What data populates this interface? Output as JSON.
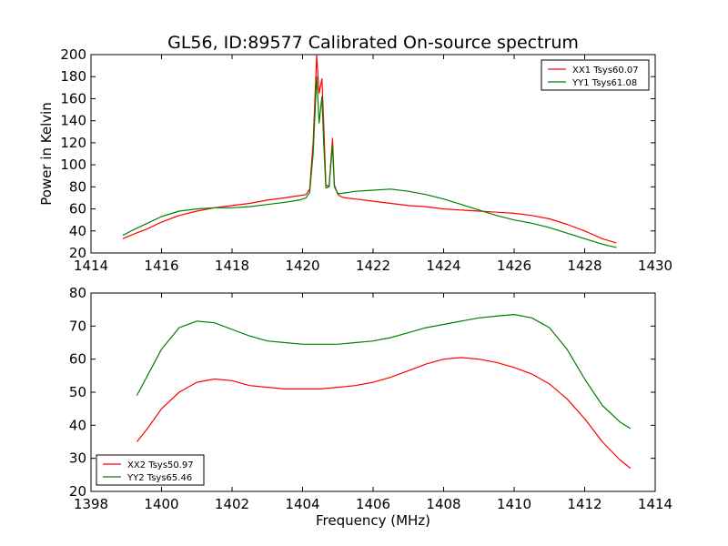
{
  "chart_data": [
    {
      "type": "line",
      "title": "GL56, ID:89577 Calibrated On-source spectrum",
      "xlabel": "",
      "ylabel": "Power in Kelvin",
      "xlim": [
        1414,
        1430
      ],
      "ylim": [
        20,
        200
      ],
      "xticks": [
        "1414",
        "1416",
        "1418",
        "1420",
        "1422",
        "1424",
        "1426",
        "1428",
        "1430"
      ],
      "yticks": [
        "20",
        "40",
        "60",
        "80",
        "100",
        "120",
        "140",
        "160",
        "180",
        "200"
      ],
      "grid": false,
      "legend_position": "top-right",
      "series": [
        {
          "name": "XX1 Tsys60.07",
          "color": "#ff0000",
          "x": [
            1414.9,
            1415.2,
            1415.6,
            1416.0,
            1416.5,
            1417.0,
            1417.5,
            1418.0,
            1418.5,
            1419.0,
            1419.5,
            1419.9,
            1420.1,
            1420.2,
            1420.3,
            1420.4,
            1420.47,
            1420.55,
            1420.6,
            1420.66,
            1420.75,
            1420.85,
            1420.9,
            1421.0,
            1421.1,
            1421.2,
            1421.5,
            1422.0,
            1422.5,
            1423.0,
            1423.5,
            1424.0,
            1424.5,
            1425.0,
            1425.5,
            1426.0,
            1426.5,
            1427.0,
            1427.5,
            1428.0,
            1428.5,
            1428.9
          ],
          "values": [
            33,
            37,
            42,
            48,
            54,
            58,
            61,
            63,
            65,
            68,
            70,
            72,
            73,
            78,
            120,
            199,
            165,
            178,
            138,
            82,
            80,
            124,
            82,
            73,
            71,
            70,
            69,
            67,
            65,
            63,
            62,
            60,
            59,
            58,
            57,
            56,
            54,
            51,
            46,
            40,
            33,
            29
          ]
        },
        {
          "name": "YY1 Tsys61.08",
          "color": "#008000",
          "x": [
            1414.9,
            1415.2,
            1415.6,
            1416.0,
            1416.5,
            1417.0,
            1417.5,
            1418.0,
            1418.5,
            1419.0,
            1419.5,
            1419.9,
            1420.1,
            1420.2,
            1420.3,
            1420.4,
            1420.47,
            1420.55,
            1420.6,
            1420.66,
            1420.75,
            1420.85,
            1420.9,
            1421.0,
            1421.1,
            1421.5,
            1422.0,
            1422.5,
            1423.0,
            1423.5,
            1424.0,
            1424.5,
            1425.0,
            1425.5,
            1426.0,
            1426.5,
            1427.0,
            1427.5,
            1428.0,
            1428.5,
            1428.9
          ],
          "values": [
            36,
            41,
            47,
            53,
            58,
            60,
            61,
            61,
            62,
            64,
            66,
            68,
            70,
            75,
            110,
            180,
            138,
            162,
            120,
            79,
            80,
            118,
            80,
            74,
            74,
            76,
            77,
            78,
            76,
            73,
            69,
            64,
            59,
            54,
            50,
            47,
            43,
            38,
            33,
            28,
            25
          ]
        }
      ]
    },
    {
      "type": "line",
      "title": "",
      "xlabel": "Frequency (MHz)",
      "ylabel": "",
      "xlim": [
        1398,
        1414
      ],
      "ylim": [
        20,
        80
      ],
      "xticks": [
        "1398",
        "1400",
        "1402",
        "1404",
        "1406",
        "1408",
        "1410",
        "1412",
        "1414"
      ],
      "yticks": [
        "20",
        "30",
        "40",
        "50",
        "60",
        "70",
        "80"
      ],
      "grid": false,
      "legend_position": "bottom-left",
      "series": [
        {
          "name": "XX2 Tsys50.97",
          "color": "#ff0000",
          "x": [
            1399.3,
            1399.6,
            1400.0,
            1400.5,
            1401.0,
            1401.5,
            1402.0,
            1402.5,
            1403.0,
            1403.5,
            1404.0,
            1404.5,
            1405.0,
            1405.5,
            1406.0,
            1406.5,
            1407.0,
            1407.5,
            1408.0,
            1408.5,
            1409.0,
            1409.5,
            1410.0,
            1410.5,
            1411.0,
            1411.5,
            1412.0,
            1412.5,
            1413.0,
            1413.3
          ],
          "values": [
            35,
            39,
            45,
            50,
            53,
            54,
            53.5,
            52,
            51.5,
            51,
            51,
            51,
            51.5,
            52,
            53,
            54.5,
            56.5,
            58.5,
            60,
            60.5,
            60,
            59,
            57.5,
            55.5,
            52.5,
            48,
            42,
            35,
            29.5,
            27
          ]
        },
        {
          "name": "YY2 Tsys65.46",
          "color": "#008000",
          "x": [
            1399.3,
            1399.6,
            1400.0,
            1400.5,
            1401.0,
            1401.5,
            1402.0,
            1402.5,
            1403.0,
            1403.5,
            1404.0,
            1404.5,
            1405.0,
            1405.5,
            1406.0,
            1406.5,
            1407.0,
            1407.5,
            1408.0,
            1408.5,
            1409.0,
            1409.5,
            1410.0,
            1410.5,
            1411.0,
            1411.5,
            1412.0,
            1412.5,
            1413.0,
            1413.3
          ],
          "values": [
            49,
            55,
            63,
            69.5,
            71.5,
            71,
            69,
            67,
            65.5,
            65,
            64.5,
            64.5,
            64.5,
            65,
            65.5,
            66.5,
            68,
            69.5,
            70.5,
            71.5,
            72.5,
            73,
            73.5,
            72.5,
            69.5,
            63,
            54,
            46,
            41,
            39
          ]
        }
      ]
    }
  ]
}
